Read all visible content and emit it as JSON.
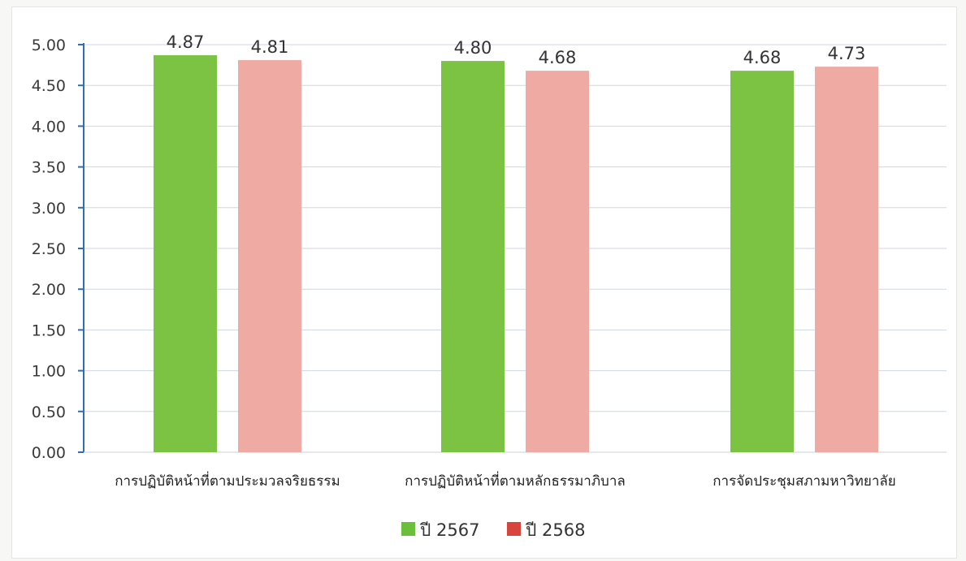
{
  "chart_data": {
    "type": "bar",
    "title": "",
    "xlabel": "",
    "ylabel": "",
    "categories": [
      "การปฏิบัติหน้าที่ตามประมวลจริยธรรม",
      "การปฏิบัติหน้าที่ตามหลักธรรมาภิบาล",
      "การจัดประชุมสภามหาวิทยาลัย"
    ],
    "series": [
      {
        "name": "ปี 2567",
        "values": [
          4.87,
          4.8,
          4.68
        ],
        "color": "#7cc243"
      },
      {
        "name": "ปี 2568",
        "values": [
          4.81,
          4.68,
          4.73
        ],
        "color": "#efaaa4"
      }
    ],
    "legend_swatch_colors": [
      "#6cbf3a",
      "#d9453c"
    ],
    "ylim": [
      0,
      5
    ],
    "yticks": [
      "0.00",
      "0.50",
      "1.00",
      "1.50",
      "2.00",
      "2.50",
      "3.00",
      "3.50",
      "4.00",
      "4.50",
      "5.00"
    ],
    "data_labels": [
      [
        "4.87",
        "4.80",
        "4.68"
      ],
      [
        "4.81",
        "4.68",
        "4.73"
      ]
    ],
    "grid": true,
    "legend_position": "bottom"
  }
}
